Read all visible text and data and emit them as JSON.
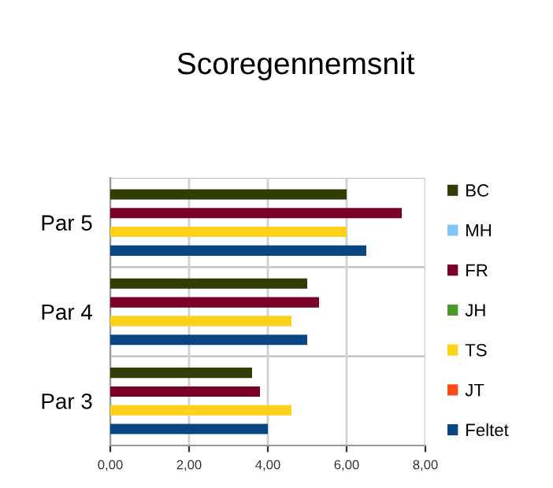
{
  "chart_data": {
    "type": "bar",
    "orientation": "horizontal",
    "title": "Scoregennemsnit",
    "categories": [
      "Par 5",
      "Par 4",
      "Par 3"
    ],
    "series": [
      {
        "name": "BC",
        "color": "#2f3d06",
        "values": [
          6.0,
          5.0,
          3.6
        ]
      },
      {
        "name": "MH",
        "color": "#7fc5f5",
        "values": [
          null,
          null,
          null
        ]
      },
      {
        "name": "FR",
        "color": "#7a0026",
        "values": [
          7.4,
          5.3,
          3.8
        ]
      },
      {
        "name": "JH",
        "color": "#4a9a2a",
        "values": [
          null,
          null,
          null
        ]
      },
      {
        "name": "TS",
        "color": "#ffd11a",
        "values": [
          6.0,
          4.6,
          4.6
        ]
      },
      {
        "name": "JT",
        "color": "#ff4a1a",
        "values": [
          null,
          null,
          null
        ]
      },
      {
        "name": "Feltet",
        "color": "#0a4682",
        "values": [
          6.5,
          5.0,
          4.0
        ]
      }
    ],
    "xlim": [
      0,
      8
    ],
    "xticks": [
      {
        "value": 0,
        "label": "0,00"
      },
      {
        "value": 2,
        "label": "2,00"
      },
      {
        "value": 4,
        "label": "4,00"
      },
      {
        "value": 6,
        "label": "6,00"
      },
      {
        "value": 8,
        "label": "8,00"
      }
    ],
    "grid": "x",
    "legend": "right"
  }
}
